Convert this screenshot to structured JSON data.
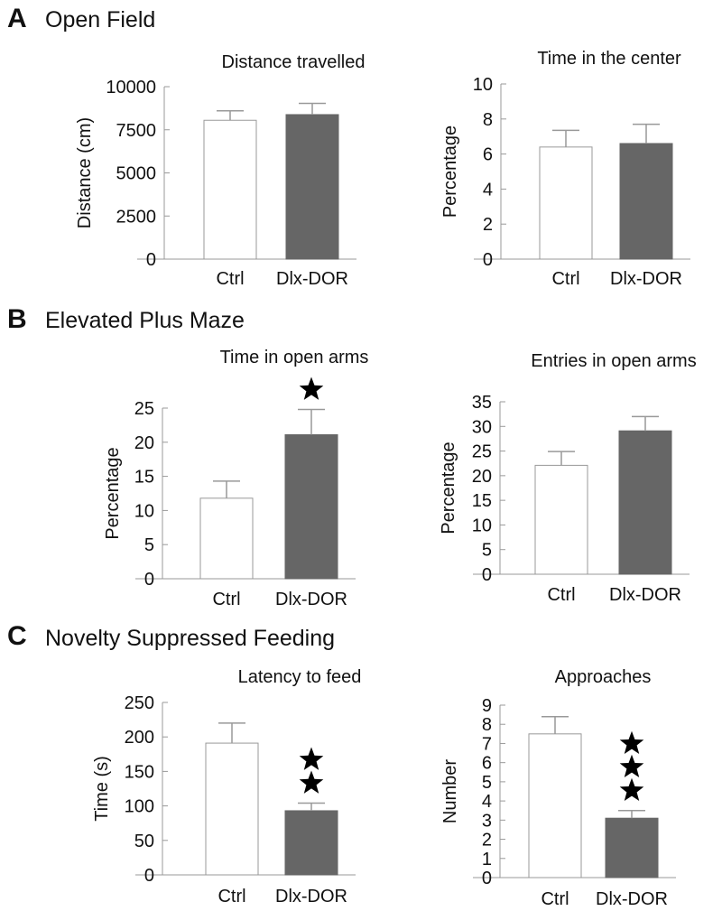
{
  "sections": [
    {
      "letter": "A",
      "title": "Open Field"
    },
    {
      "letter": "B",
      "title": "Elevated Plus Maze"
    },
    {
      "letter": "C",
      "title": "Novelty Suppressed Feeding"
    }
  ],
  "colors": {
    "ctrl_fill": "#ffffff",
    "dor_fill": "#666666",
    "axis": "#999999",
    "text": "#111111"
  },
  "chart_data": [
    {
      "type": "bar",
      "title": "Distance travelled",
      "ylabel": "Distance (cm)",
      "categories": [
        "Ctrl",
        "Dlx-DOR"
      ],
      "values": [
        8050,
        8380
      ],
      "errors": [
        550,
        650
      ],
      "ylim": [
        0,
        10000
      ],
      "yticks": [
        0,
        2500,
        5000,
        7500,
        10000
      ],
      "yticklabels": [
        "0",
        "2500",
        "5000",
        "7500",
        "10000"
      ],
      "significance": [
        0,
        0
      ],
      "grid": false
    },
    {
      "type": "bar",
      "title": "Time in the center",
      "ylabel": "Percentage",
      "categories": [
        "Ctrl",
        "Dlx-DOR"
      ],
      "values": [
        6.4,
        6.6
      ],
      "errors": [
        0.95,
        1.1
      ],
      "ylim": [
        0,
        10
      ],
      "yticks": [
        0,
        2,
        4,
        6,
        8,
        10
      ],
      "yticklabels": [
        "0",
        "2",
        "4",
        "6",
        "8",
        "10"
      ],
      "significance": [
        0,
        0
      ],
      "grid": false
    },
    {
      "type": "bar",
      "title": "Time in open arms",
      "ylabel": "Percentage",
      "categories": [
        "Ctrl",
        "Dlx-DOR"
      ],
      "values": [
        11.8,
        21.1
      ],
      "errors": [
        2.5,
        3.7
      ],
      "ylim": [
        0,
        25
      ],
      "yticks": [
        0,
        5,
        10,
        15,
        20,
        25
      ],
      "yticklabels": [
        "0",
        "5",
        "10",
        "15",
        "20",
        "25"
      ],
      "significance": [
        0,
        1
      ],
      "grid": false
    },
    {
      "type": "bar",
      "title": "Entries in open arms",
      "ylabel": "Percentage",
      "categories": [
        "Ctrl",
        "Dlx-DOR"
      ],
      "values": [
        22.1,
        29.1
      ],
      "errors": [
        2.8,
        2.9
      ],
      "ylim": [
        0,
        35
      ],
      "yticks": [
        0,
        5,
        10,
        15,
        20,
        25,
        30,
        35
      ],
      "yticklabels": [
        "0",
        "5",
        "10",
        "15",
        "20",
        "25",
        "30",
        "35"
      ],
      "significance": [
        0,
        0
      ],
      "grid": false
    },
    {
      "type": "bar",
      "title": "Latency to feed",
      "ylabel": "Time (s)",
      "categories": [
        "Ctrl",
        "Dlx-DOR"
      ],
      "values": [
        191,
        93
      ],
      "errors": [
        29,
        11
      ],
      "ylim": [
        0,
        250
      ],
      "yticks": [
        0,
        50,
        100,
        150,
        200,
        250
      ],
      "yticklabels": [
        "0",
        "50",
        "100",
        "150",
        "200",
        "250"
      ],
      "significance": [
        0,
        2
      ],
      "grid": false
    },
    {
      "type": "bar",
      "title": "Approaches",
      "ylabel": "Number",
      "categories": [
        "Ctrl",
        "Dlx-DOR"
      ],
      "values": [
        7.5,
        3.1
      ],
      "errors": [
        0.9,
        0.4
      ],
      "ylim": [
        0,
        9
      ],
      "yticks": [
        0,
        1,
        2,
        3,
        4,
        5,
        6,
        7,
        8,
        9
      ],
      "yticklabels": [
        "0",
        "1",
        "2",
        "3",
        "4",
        "5",
        "6",
        "7",
        "8",
        "9"
      ],
      "significance": [
        0,
        3
      ],
      "grid": false
    }
  ]
}
